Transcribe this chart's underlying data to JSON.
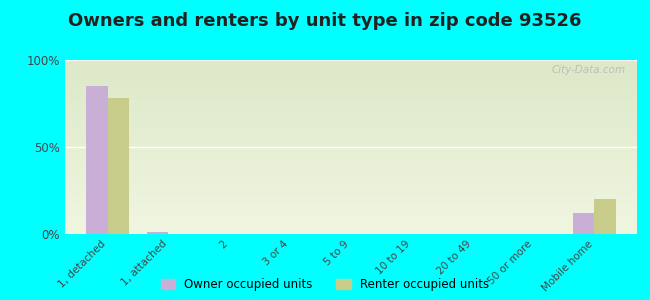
{
  "title": "Owners and renters by unit type in zip code 93526",
  "categories": [
    "1, detached",
    "1, attached",
    "2",
    "3 or 4",
    "5 to 9",
    "10 to 19",
    "20 to 49",
    "50 or more",
    "Mobile home"
  ],
  "owner_values": [
    85,
    1,
    0,
    0,
    0,
    0,
    0,
    0,
    12
  ],
  "renter_values": [
    78,
    0,
    0,
    0,
    0,
    0,
    0,
    0,
    20
  ],
  "owner_color": "#c9aed6",
  "renter_color": "#c8cc8a",
  "bg_color": "#00ffff",
  "yticks": [
    0,
    50,
    100
  ],
  "ytick_labels": [
    "0%",
    "50%",
    "100%"
  ],
  "ylim": [
    0,
    100
  ],
  "bar_width": 0.35,
  "legend_owner": "Owner occupied units",
  "legend_renter": "Renter occupied units",
  "title_fontsize": 13,
  "watermark": "City-Data.com"
}
